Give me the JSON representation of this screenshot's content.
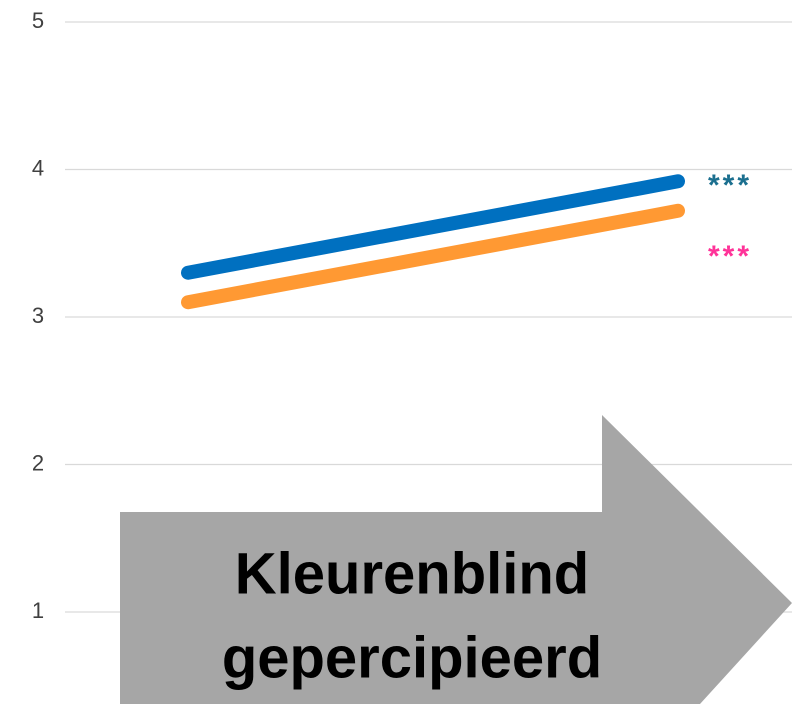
{
  "chart_data": {
    "type": "line",
    "categories": [
      null,
      null
    ],
    "series": [
      {
        "color": "#0070c0",
        "values": [
          3.3,
          3.92
        ]
      },
      {
        "color": "#ff9933",
        "values": [
          3.1,
          3.72
        ]
      }
    ],
    "ylim": [
      0,
      5
    ],
    "yticks": [
      1,
      2,
      3,
      4,
      5
    ],
    "grid": true,
    "annotations": [
      {
        "text": "***",
        "color": "#1b6f8f"
      },
      {
        "text": "***",
        "color": "#ff3399"
      }
    ],
    "arrow_label": [
      "Kleurenblind",
      "gepercipieerd"
    ]
  }
}
